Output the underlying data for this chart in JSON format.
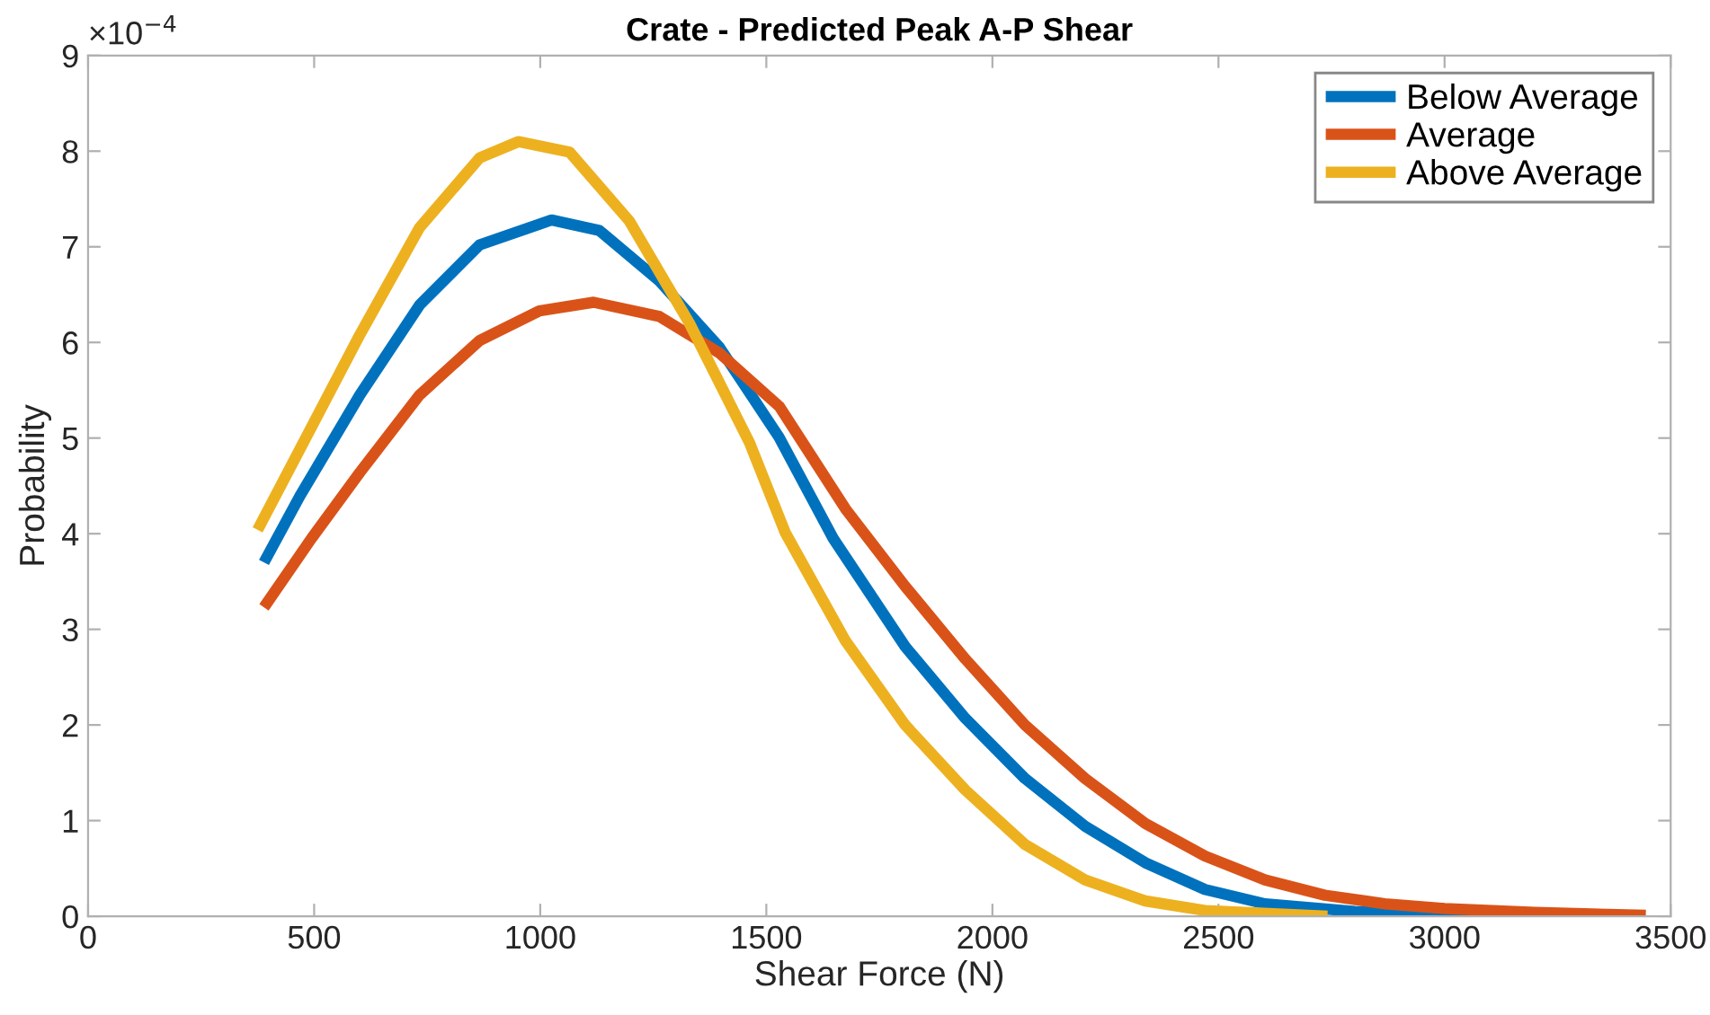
{
  "chart_data": {
    "type": "line",
    "title": "Crate - Predicted Peak A-P Shear",
    "xlabel": "Shear Force (N)",
    "ylabel": "Probability",
    "annotations": [
      "×10$^{−4}$"
    ],
    "xlim": [
      0,
      3500
    ],
    "xticks": [
      0,
      500,
      1000,
      1500,
      2000,
      2500,
      3000,
      3500
    ],
    "ylim": [
      0,
      9
    ],
    "yticks": [
      0,
      1,
      2,
      3,
      4,
      5,
      6,
      7,
      8,
      9
    ],
    "grid": false,
    "legend": "top right",
    "marker": "none",
    "line_style": "solid",
    "series": [
      {
        "name": "Below Average",
        "color": "#0072bd",
        "x": [
          389,
          468,
          601,
          733,
          866,
          1025,
          1131,
          1264,
          1396,
          1528,
          1648,
          1807,
          1940,
          2072,
          2205,
          2338,
          2470,
          2603,
          2801,
          3146
        ],
        "values": [
          3.7,
          4.39,
          5.45,
          6.39,
          7.02,
          7.28,
          7.17,
          6.64,
          5.95,
          5.01,
          3.95,
          2.82,
          2.07,
          1.44,
          0.94,
          0.56,
          0.28,
          0.13,
          0.05,
          0.0
        ]
      },
      {
        "name": "Average",
        "color": "#d95319",
        "x": [
          389,
          494,
          601,
          733,
          866,
          998,
          1118,
          1264,
          1396,
          1529,
          1675,
          1807,
          1940,
          2072,
          2205,
          2338,
          2470,
          2603,
          2735,
          2868,
          3000,
          3199,
          3445
        ],
        "values": [
          3.23,
          3.95,
          4.64,
          5.45,
          6.02,
          6.33,
          6.42,
          6.27,
          5.89,
          5.33,
          4.26,
          3.45,
          2.69,
          2.0,
          1.44,
          0.97,
          0.63,
          0.38,
          0.22,
          0.13,
          0.08,
          0.04,
          0.01
        ]
      },
      {
        "name": "Above Average",
        "color": "#edb120",
        "x": [
          375,
          601,
          733,
          866,
          952,
          1065,
          1197,
          1330,
          1463,
          1542,
          1675,
          1807,
          1940,
          2072,
          2205,
          2338,
          2470,
          2741
        ],
        "values": [
          4.04,
          6.08,
          7.2,
          7.93,
          8.1,
          7.99,
          7.27,
          6.2,
          4.95,
          4.01,
          2.88,
          2.0,
          1.32,
          0.75,
          0.38,
          0.16,
          0.06,
          0.0
        ]
      }
    ]
  }
}
